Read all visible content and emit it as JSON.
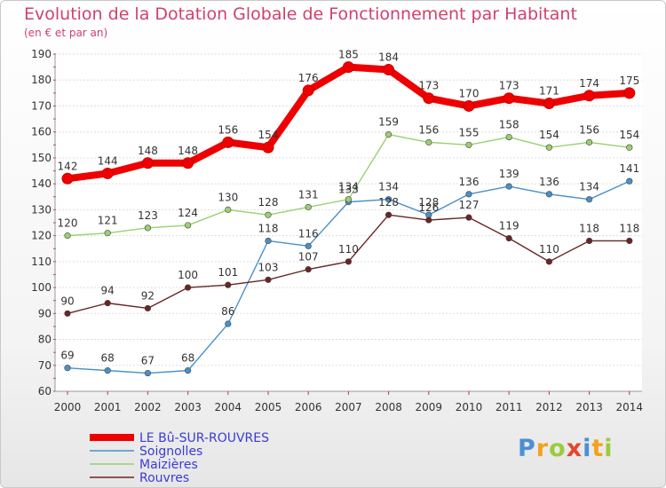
{
  "header": {
    "title": "Evolution de la Dotation Globale de Fonctionnement par Habitant",
    "subtitle": "(en € et par an)"
  },
  "logo": {
    "text": "Proxiti",
    "colors": [
      "#4a8fd6",
      "#f2a21d",
      "#9bcb3c",
      "#e4462e",
      "#4a8fd6",
      "#f2a21d",
      "#9bcb3c"
    ]
  },
  "chart_data": {
    "type": "line",
    "title": "Evolution de la Dotation Globale de Fonctionnement par Habitant",
    "subtitle": "(en € et par an)",
    "xlabel": "",
    "ylabel": "",
    "x": [
      "2000",
      "2001",
      "2002",
      "2003",
      "2004",
      "2005",
      "2006",
      "2007",
      "2008",
      "2009",
      "2010",
      "2011",
      "2012",
      "2013",
      "2014"
    ],
    "ylim": [
      60,
      190
    ],
    "yticks": [
      60,
      70,
      80,
      90,
      100,
      110,
      120,
      130,
      140,
      150,
      160,
      170,
      180,
      190
    ],
    "grid": "horizontal",
    "legend": "bottom-left",
    "series": [
      {
        "name": "LE Bû-SUR-ROUVRES",
        "color": "#ee0000",
        "labelColor": "#333333",
        "thick": true,
        "values": [
          142,
          144,
          148,
          148,
          156,
          154,
          176,
          185,
          184,
          173,
          170,
          173,
          171,
          174,
          175
        ]
      },
      {
        "name": "Soignolles",
        "color": "#4a90c8",
        "labelColor": "#333333",
        "thick": false,
        "values": [
          69,
          68,
          67,
          68,
          86,
          118,
          116,
          133,
          134,
          128,
          136,
          139,
          136,
          134,
          141
        ]
      },
      {
        "name": "Maizières",
        "color": "#9bd070",
        "labelColor": "#333333",
        "thick": false,
        "values": [
          120,
          121,
          123,
          124,
          130,
          128,
          131,
          134,
          159,
          156,
          155,
          158,
          154,
          156,
          154
        ]
      },
      {
        "name": "Rouvres",
        "color": "#6b2424",
        "labelColor": "#333333",
        "thick": false,
        "values": [
          90,
          94,
          92,
          100,
          101,
          103,
          107,
          110,
          128,
          126,
          127,
          119,
          110,
          118,
          118
        ]
      }
    ],
    "legendTextColor": "#3b3bd6"
  }
}
